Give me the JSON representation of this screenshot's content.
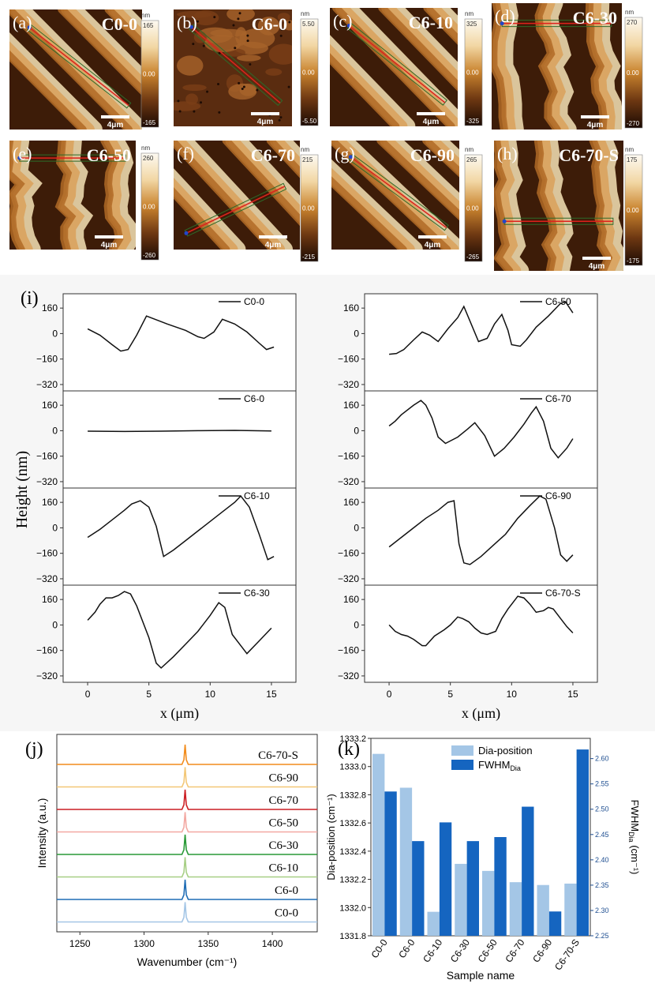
{
  "afm_panels": [
    {
      "letter": "(a)",
      "sample": "C0-0",
      "unit": "nm",
      "scale_max": "165",
      "scale_mid": "0.00",
      "scale_min": "-165",
      "scale_bar": "4μm",
      "line": "diagonal"
    },
    {
      "letter": "(b)",
      "sample": "C6-0",
      "unit": "nm",
      "scale_max": "5.50",
      "scale_mid": "0.00",
      "scale_min": "-5.50",
      "scale_bar": "4μm",
      "line": "diagonal"
    },
    {
      "letter": "(c)",
      "sample": "C6-10",
      "unit": "nm",
      "scale_max": "325",
      "scale_mid": "0.00",
      "scale_min": "-325",
      "scale_bar": "4μm",
      "line": "diagonal"
    },
    {
      "letter": "(d)",
      "sample": "C6-30",
      "unit": "nm",
      "scale_max": "270",
      "scale_mid": "0.00",
      "scale_min": "-270",
      "scale_bar": "4μm",
      "line": "horizontal"
    },
    {
      "letter": "(e)",
      "sample": "C6-50",
      "unit": "nm",
      "scale_max": "260",
      "scale_mid": "0.00",
      "scale_min": "-260",
      "scale_bar": "4μm",
      "line": "horizontal"
    },
    {
      "letter": "(f)",
      "sample": "C6-70",
      "unit": "nm",
      "scale_max": "215",
      "scale_mid": "0.00",
      "scale_min": "-215",
      "scale_bar": "4μm",
      "line": "rising"
    },
    {
      "letter": "(g)",
      "sample": "C6-90",
      "unit": "nm",
      "scale_max": "265",
      "scale_mid": "0.00",
      "scale_min": "-265",
      "scale_bar": "4μm",
      "line": "diagonal"
    },
    {
      "letter": "(h)",
      "sample": "C6-70-S",
      "unit": "nm",
      "scale_max": "175",
      "scale_mid": "0.00",
      "scale_min": "-175",
      "scale_bar": "4μm",
      "line": "horizontal"
    }
  ],
  "chart_data": [
    {
      "panel": "(i)",
      "type": "line",
      "ylabel": "Height (nm)",
      "xlabel": "x (μm)",
      "xlim": [
        -2,
        17
      ],
      "ylim": [
        -360,
        250
      ],
      "x_ticks": [
        "0",
        "5",
        "10",
        "15"
      ],
      "y_ticks": [
        "160",
        "0",
        "-160",
        "-320"
      ],
      "series": [
        {
          "name": "C0-0",
          "col": 0,
          "row": 0,
          "x": [
            0,
            1,
            2,
            2.7,
            3.3,
            4,
            4.8,
            5.5,
            6.5,
            8,
            9,
            9.5,
            10.3,
            11,
            12,
            13,
            14,
            14.6,
            15.2
          ],
          "y": [
            30,
            -10,
            -70,
            -110,
            -100,
            -10,
            110,
            90,
            60,
            20,
            -20,
            -30,
            10,
            90,
            60,
            10,
            -60,
            -100,
            -85
          ]
        },
        {
          "name": "C6-0",
          "col": 0,
          "row": 1,
          "x": [
            0,
            3,
            6,
            9,
            12,
            15
          ],
          "y": [
            -3,
            -5,
            -3,
            0,
            2,
            -2
          ]
        },
        {
          "name": "C6-10",
          "col": 0,
          "row": 2,
          "x": [
            0,
            1,
            2,
            3,
            3.6,
            4.3,
            5,
            5.6,
            6.2,
            7,
            8,
            9,
            10,
            11,
            12,
            12.5,
            13.2,
            14,
            14.7,
            15.2
          ],
          "y": [
            -60,
            -10,
            50,
            110,
            150,
            170,
            130,
            10,
            -180,
            -140,
            -80,
            -20,
            40,
            100,
            160,
            200,
            130,
            -40,
            -200,
            -180
          ]
        },
        {
          "name": "C6-30",
          "col": 0,
          "row": 3,
          "x": [
            0,
            0.6,
            1,
            1.5,
            2,
            2.5,
            3,
            3.5,
            4,
            5,
            5.6,
            6,
            7,
            8,
            9,
            10,
            10.7,
            11.2,
            11.8,
            12.5,
            13,
            14,
            15
          ],
          "y": [
            30,
            80,
            130,
            170,
            170,
            185,
            210,
            195,
            120,
            -80,
            -240,
            -270,
            -200,
            -120,
            -40,
            60,
            140,
            110,
            -60,
            -130,
            -180,
            -100,
            -20
          ]
        },
        {
          "name": "C6-50",
          "col": 1,
          "row": 0,
          "x": [
            0,
            0.6,
            1.2,
            2,
            2.7,
            3.3,
            4,
            4.8,
            5.6,
            6.1,
            6.7,
            7.3,
            8,
            8.6,
            9.2,
            9.7,
            10,
            10.7,
            11.2,
            12,
            13,
            14,
            14.4,
            15
          ],
          "y": [
            -130,
            -125,
            -100,
            -40,
            10,
            -10,
            -50,
            30,
            100,
            170,
            60,
            -50,
            -30,
            60,
            120,
            20,
            -70,
            -80,
            -40,
            40,
            110,
            190,
            200,
            130
          ]
        },
        {
          "name": "C6-70",
          "col": 1,
          "row": 1,
          "x": [
            0,
            0.5,
            1,
            2,
            2.6,
            3,
            3.5,
            4,
            4.6,
            5.6,
            6.4,
            7,
            7.8,
            8.6,
            9.4,
            10.2,
            11,
            11.6,
            12,
            12.6,
            13.2,
            13.8,
            14.5,
            15
          ],
          "y": [
            30,
            60,
            100,
            160,
            190,
            160,
            80,
            -40,
            -80,
            -40,
            10,
            50,
            -30,
            -160,
            -110,
            -40,
            40,
            110,
            150,
            60,
            -110,
            -170,
            -110,
            -50
          ]
        },
        {
          "name": "C6-90",
          "col": 1,
          "row": 2,
          "x": [
            0,
            1,
            2,
            3,
            4,
            4.8,
            5.3,
            5.7,
            6.1,
            6.6,
            7.5,
            8.5,
            9.5,
            10.5,
            11.5,
            12.3,
            12.8,
            13.5,
            14,
            14.5,
            15
          ],
          "y": [
            -120,
            -60,
            0,
            60,
            110,
            160,
            170,
            -100,
            -220,
            -230,
            -180,
            -110,
            -40,
            60,
            140,
            200,
            180,
            0,
            -170,
            -210,
            -170
          ]
        },
        {
          "name": "C6-70-S",
          "col": 1,
          "row": 3,
          "x": [
            0,
            0.5,
            1,
            1.5,
            2,
            2.7,
            3,
            3.7,
            4.5,
            5,
            5.6,
            6,
            6.5,
            7,
            7.5,
            8,
            8.7,
            9.2,
            9.7,
            10.2,
            10.5,
            11,
            11.5,
            12,
            12.6,
            13,
            13.4,
            14,
            14.5,
            15
          ],
          "y": [
            0,
            -40,
            -60,
            -70,
            -90,
            -130,
            -130,
            -70,
            -30,
            0,
            50,
            40,
            20,
            -20,
            -50,
            -60,
            -40,
            40,
            100,
            150,
            180,
            170,
            130,
            80,
            90,
            110,
            100,
            40,
            -10,
            -50
          ]
        }
      ]
    },
    {
      "panel": "(j)",
      "type": "line",
      "ylabel": "Intensity (a.u.)",
      "xlabel": "Wavenumber (cm⁻¹)",
      "xlim": [
        1232,
        1435
      ],
      "x_ticks": [
        "1250",
        "1300",
        "1350",
        "1400"
      ],
      "peak": 1332,
      "series": [
        {
          "name": "C6-70-S",
          "color": "#f28c1c"
        },
        {
          "name": "C6-90",
          "color": "#f3c777"
        },
        {
          "name": "C6-70",
          "color": "#cc1f24"
        },
        {
          "name": "C6-50",
          "color": "#f3a8a2"
        },
        {
          "name": "C6-30",
          "color": "#289936"
        },
        {
          "name": "C6-10",
          "color": "#a7cf85"
        },
        {
          "name": "C6-0",
          "color": "#1f6db5"
        },
        {
          "name": "C0-0",
          "color": "#a4c6e6"
        }
      ]
    },
    {
      "panel": "(k)",
      "type": "bar",
      "xlabel": "Sample name",
      "ylabel": "Dia-position (cm⁻¹)",
      "y2label": "FWHM",
      "ylim": [
        1331.8,
        1333.2
      ],
      "y2lim": [
        2.25,
        2.64
      ],
      "y_ticks": [
        "1331.8",
        "1332.0",
        "1332.2",
        "1332.4",
        "1332.6",
        "1332.8",
        "1333.0",
        "1333.2"
      ],
      "y2_ticks": [
        "2.25",
        "2.30",
        "2.35",
        "2.40",
        "2.45",
        "2.50",
        "2.55",
        "2.60"
      ],
      "categories": [
        "C0-0",
        "C6-0",
        "C6-10",
        "C6-30",
        "C6-50",
        "C6-70",
        "C6-90",
        "C6-70-S"
      ],
      "series": [
        {
          "name": "Dia-position",
          "color": "#a4c6e6",
          "values": [
            1333.09,
            1332.85,
            1331.97,
            1332.31,
            1332.26,
            1332.18,
            1332.16,
            1332.17
          ]
        },
        {
          "name": "FWHM",
          "subscript": "Dia",
          "color": "#1565c0",
          "values": [
            2.535,
            2.437,
            2.474,
            2.437,
            2.445,
            2.505,
            2.298,
            2.618
          ]
        }
      ]
    }
  ]
}
